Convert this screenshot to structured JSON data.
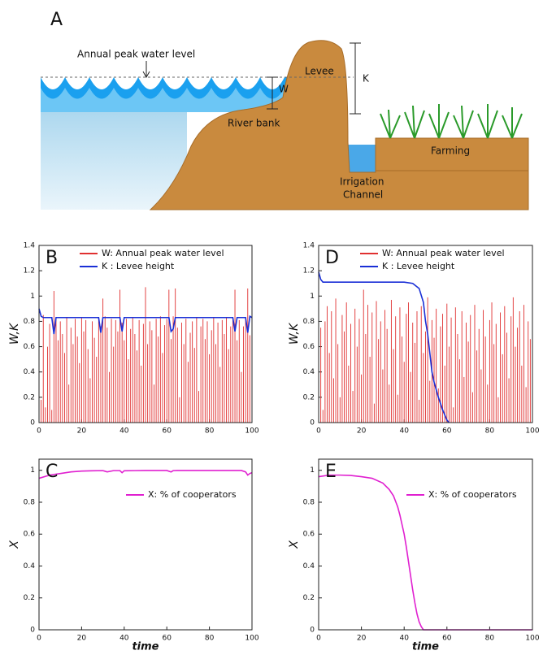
{
  "diagram": {
    "panel_label": "A",
    "peak_label": "Annual peak water level",
    "w_label": "W",
    "levee_label": "Levee",
    "k_label": "K",
    "bank_label": "River bank",
    "farming_label": "Farming",
    "channel_label": [
      "Irrigation",
      "Channel"
    ]
  },
  "chart_data": [
    {
      "type": "stem",
      "panel_label": "B",
      "ylabel": "W,K",
      "legend": "upper right",
      "xlim": [
        0,
        100
      ],
      "xticks": [
        0,
        20,
        40,
        60,
        80,
        100
      ],
      "ylim": [
        0,
        1.4
      ],
      "yticks": [
        0,
        0.2,
        0.4,
        0.6,
        0.8,
        1,
        1.2,
        1.4
      ],
      "series": [
        {
          "name": "W: Annual peak water level",
          "color": "#e03030",
          "kind": "stem",
          "x": [
            1,
            2,
            3,
            4,
            5,
            6,
            7,
            8,
            9,
            10,
            11,
            12,
            13,
            14,
            15,
            16,
            17,
            18,
            19,
            20,
            21,
            22,
            23,
            24,
            25,
            26,
            27,
            28,
            29,
            30,
            31,
            32,
            33,
            34,
            35,
            36,
            37,
            38,
            39,
            40,
            41,
            42,
            43,
            44,
            45,
            46,
            47,
            48,
            49,
            50,
            51,
            52,
            53,
            54,
            55,
            56,
            57,
            58,
            59,
            60,
            61,
            62,
            63,
            64,
            65,
            66,
            67,
            68,
            69,
            70,
            71,
            72,
            73,
            74,
            75,
            76,
            77,
            78,
            79,
            80,
            81,
            82,
            83,
            84,
            85,
            86,
            87,
            88,
            89,
            90,
            91,
            92,
            93,
            94,
            95,
            96,
            97,
            98,
            99,
            100
          ],
          "values": [
            0.18,
            0.85,
            0.12,
            0.6,
            0.78,
            0.1,
            1.04,
            0.82,
            0.65,
            0.8,
            0.7,
            0.55,
            0.83,
            0.3,
            0.75,
            0.62,
            0.82,
            0.68,
            0.47,
            0.83,
            0.72,
            0.81,
            0.58,
            0.35,
            0.8,
            0.67,
            0.52,
            0.83,
            0.76,
            0.98,
            0.84,
            0.75,
            0.4,
            0.82,
            0.6,
            0.81,
            0.72,
            1.05,
            0.79,
            0.65,
            0.82,
            0.5,
            0.74,
            0.83,
            0.7,
            0.57,
            0.81,
            0.45,
            0.78,
            1.07,
            0.62,
            0.8,
            0.73,
            0.3,
            0.82,
            0.68,
            0.84,
            0.55,
            0.77,
            0.82,
            1.05,
            0.66,
            0.84,
            1.06,
            0.75,
            0.2,
            0.79,
            0.62,
            0.82,
            0.48,
            0.71,
            0.8,
            0.59,
            0.83,
            0.25,
            0.76,
            0.82,
            0.66,
            0.8,
            0.54,
            0.73,
            0.83,
            0.62,
            0.79,
            0.44,
            0.81,
            0.7,
            0.83,
            0.58,
            0.76,
            0.82,
            1.05,
            0.65,
            0.81,
            0.4,
            0.76,
            0.83,
            1.06,
            0.69,
            0.82
          ]
        },
        {
          "name": "K : Levee height",
          "color": "#1a2fd6",
          "kind": "line",
          "x": [
            0,
            1,
            2,
            6,
            7,
            8,
            28,
            29,
            30,
            38,
            39,
            40,
            61,
            62,
            63,
            64,
            65,
            91,
            92,
            93,
            97,
            98,
            99,
            100
          ],
          "values": [
            0.9,
            0.84,
            0.83,
            0.83,
            0.7,
            0.83,
            0.83,
            0.71,
            0.83,
            0.83,
            0.72,
            0.83,
            0.83,
            0.72,
            0.74,
            0.83,
            0.83,
            0.83,
            0.72,
            0.83,
            0.83,
            0.71,
            0.84,
            0.83
          ]
        }
      ]
    },
    {
      "type": "stem",
      "panel_label": "D",
      "ylabel": "W,K",
      "legend": "upper right",
      "xlim": [
        0,
        100
      ],
      "xticks": [
        0,
        20,
        40,
        60,
        80,
        100
      ],
      "ylim": [
        0,
        1.4
      ],
      "yticks": [
        0,
        0.2,
        0.4,
        0.6,
        0.8,
        1,
        1.2,
        1.4
      ],
      "series": [
        {
          "name": "W: Annual peak water level",
          "color": "#e03030",
          "kind": "stem",
          "x": [
            1,
            2,
            3,
            4,
            5,
            6,
            7,
            8,
            9,
            10,
            11,
            12,
            13,
            14,
            15,
            16,
            17,
            18,
            19,
            20,
            21,
            22,
            23,
            24,
            25,
            26,
            27,
            28,
            29,
            30,
            31,
            32,
            33,
            34,
            35,
            36,
            37,
            38,
            39,
            40,
            41,
            42,
            43,
            44,
            45,
            46,
            47,
            48,
            49,
            50,
            51,
            52,
            53,
            54,
            55,
            56,
            57,
            58,
            59,
            60,
            61,
            62,
            63,
            64,
            65,
            66,
            67,
            68,
            69,
            70,
            71,
            72,
            73,
            74,
            75,
            76,
            77,
            78,
            79,
            80,
            81,
            82,
            83,
            84,
            85,
            86,
            87,
            88,
            89,
            90,
            91,
            92,
            93,
            94,
            95,
            96,
            97,
            98,
            99,
            100
          ],
          "values": [
            0.75,
            0.1,
            0.8,
            0.92,
            0.55,
            0.88,
            0.35,
            0.98,
            0.62,
            0.2,
            0.85,
            0.72,
            0.95,
            0.45,
            0.78,
            0.25,
            0.9,
            0.6,
            0.82,
            0.38,
            1.05,
            0.7,
            0.93,
            0.52,
            0.87,
            0.15,
            0.96,
            0.66,
            0.8,
            0.42,
            0.89,
            0.74,
            0.3,
            0.97,
            0.58,
            0.84,
            0.22,
            0.91,
            0.68,
            0.48,
            0.86,
            0.95,
            0.4,
            0.79,
            0.63,
            0.88,
            0.18,
            0.92,
            0.55,
            0.72,
            0.99,
            0.33,
            0.81,
            0.67,
            0.9,
            0.27,
            0.76,
            0.86,
            0.45,
            0.94,
            0.6,
            0.83,
            0.12,
            0.91,
            0.7,
            0.5,
            0.88,
            0.36,
            0.79,
            0.64,
            0.85,
            0.24,
            0.93,
            0.57,
            0.74,
            0.42,
            0.89,
            0.68,
            0.3,
            0.81,
            0.95,
            0.62,
            0.78,
            0.2,
            0.87,
            0.54,
            0.92,
            0.71,
            0.35,
            0.84,
            0.99,
            0.6,
            0.75,
            0.88,
            0.45,
            0.93,
            0.28,
            0.8,
            0.66,
            0.9
          ]
        },
        {
          "name": "K : Levee height",
          "color": "#1a2fd6",
          "kind": "line",
          "x": [
            0,
            1,
            2,
            10,
            20,
            30,
            40,
            44,
            47,
            49,
            50,
            51,
            52,
            53,
            54,
            56,
            58,
            60,
            61
          ],
          "values": [
            1.19,
            1.13,
            1.11,
            1.11,
            1.11,
            1.11,
            1.11,
            1.1,
            1.06,
            0.95,
            0.8,
            0.7,
            0.55,
            0.4,
            0.32,
            0.2,
            0.1,
            0.02,
            0
          ]
        }
      ]
    },
    {
      "type": "line",
      "panel_label": "C",
      "ylabel": "X",
      "xlabel": "time",
      "legend": "center right",
      "xlim": [
        0,
        100
      ],
      "xticks": [
        0,
        20,
        40,
        60,
        80,
        100
      ],
      "ylim": [
        0,
        1.07
      ],
      "yticks": [
        0,
        0.2,
        0.4,
        0.6,
        0.8,
        1
      ],
      "series": [
        {
          "name": "X: % of cooperators",
          "color": "#e020d0",
          "kind": "line",
          "x": [
            0,
            5,
            10,
            15,
            20,
            25,
            30,
            32,
            35,
            38,
            39,
            40,
            45,
            50,
            55,
            60,
            62,
            63,
            65,
            70,
            80,
            90,
            95,
            97,
            98,
            99,
            100
          ],
          "values": [
            0.95,
            0.97,
            0.98,
            0.99,
            0.995,
            0.997,
            0.998,
            0.99,
            0.998,
            0.998,
            0.985,
            0.997,
            0.998,
            0.999,
            0.999,
            0.999,
            0.99,
            0.998,
            0.999,
            0.999,
            0.999,
            0.999,
            0.999,
            0.99,
            0.97,
            0.98,
            0.985
          ]
        }
      ]
    },
    {
      "type": "line",
      "panel_label": "E",
      "ylabel": "X",
      "xlabel": "time",
      "legend": "center right",
      "xlim": [
        0,
        100
      ],
      "xticks": [
        0,
        20,
        40,
        60,
        80,
        100
      ],
      "ylim": [
        0,
        1.07
      ],
      "yticks": [
        0,
        0.2,
        0.4,
        0.6,
        0.8,
        1
      ],
      "series": [
        {
          "name": "X: % of cooperators",
          "color": "#e020d0",
          "kind": "line",
          "x": [
            0,
            5,
            10,
            15,
            20,
            25,
            30,
            33,
            35,
            37,
            38,
            40,
            41,
            42,
            43,
            44,
            45,
            46,
            47,
            48,
            49,
            55,
            70,
            100
          ],
          "values": [
            0.96,
            0.97,
            0.97,
            0.968,
            0.96,
            0.95,
            0.92,
            0.88,
            0.84,
            0.77,
            0.72,
            0.6,
            0.52,
            0.43,
            0.34,
            0.25,
            0.17,
            0.1,
            0.05,
            0.02,
            0,
            0,
            0,
            0
          ]
        }
      ]
    }
  ]
}
